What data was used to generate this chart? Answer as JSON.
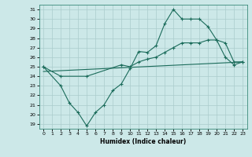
{
  "title": "",
  "xlabel": "Humidex (Indice chaleur)",
  "bg_color": "#cce8e8",
  "grid_color": "#aacccc",
  "line_color": "#1a6b5a",
  "xlim": [
    -0.5,
    23.5
  ],
  "ylim": [
    18.5,
    31.5
  ],
  "xticks": [
    0,
    1,
    2,
    3,
    4,
    5,
    6,
    7,
    8,
    9,
    10,
    11,
    12,
    13,
    14,
    15,
    16,
    17,
    18,
    19,
    20,
    21,
    22,
    23
  ],
  "yticks": [
    19,
    20,
    21,
    22,
    23,
    24,
    25,
    26,
    27,
    28,
    29,
    30,
    31
  ],
  "line1_x": [
    0,
    2,
    3,
    4,
    5,
    6,
    7,
    8,
    9,
    10,
    11,
    12,
    13,
    14,
    15,
    16,
    17,
    18,
    19,
    20,
    21,
    22,
    23
  ],
  "line1_y": [
    25.0,
    23.0,
    21.2,
    20.2,
    18.8,
    20.2,
    21.0,
    22.5,
    23.2,
    24.8,
    26.6,
    26.5,
    27.2,
    29.5,
    31.0,
    30.0,
    30.0,
    30.0,
    29.2,
    27.8,
    26.0,
    25.2,
    25.5
  ],
  "line2_x": [
    0,
    2,
    5,
    9,
    10,
    11,
    12,
    13,
    14,
    15,
    16,
    17,
    18,
    19,
    20,
    21,
    22,
    23
  ],
  "line2_y": [
    25.0,
    24.0,
    24.0,
    25.2,
    25.0,
    25.5,
    25.8,
    26.0,
    26.5,
    27.0,
    27.5,
    27.5,
    27.5,
    27.8,
    27.8,
    27.5,
    25.5,
    25.5
  ],
  "line3_x": [
    0,
    23
  ],
  "line3_y": [
    24.5,
    25.5
  ]
}
